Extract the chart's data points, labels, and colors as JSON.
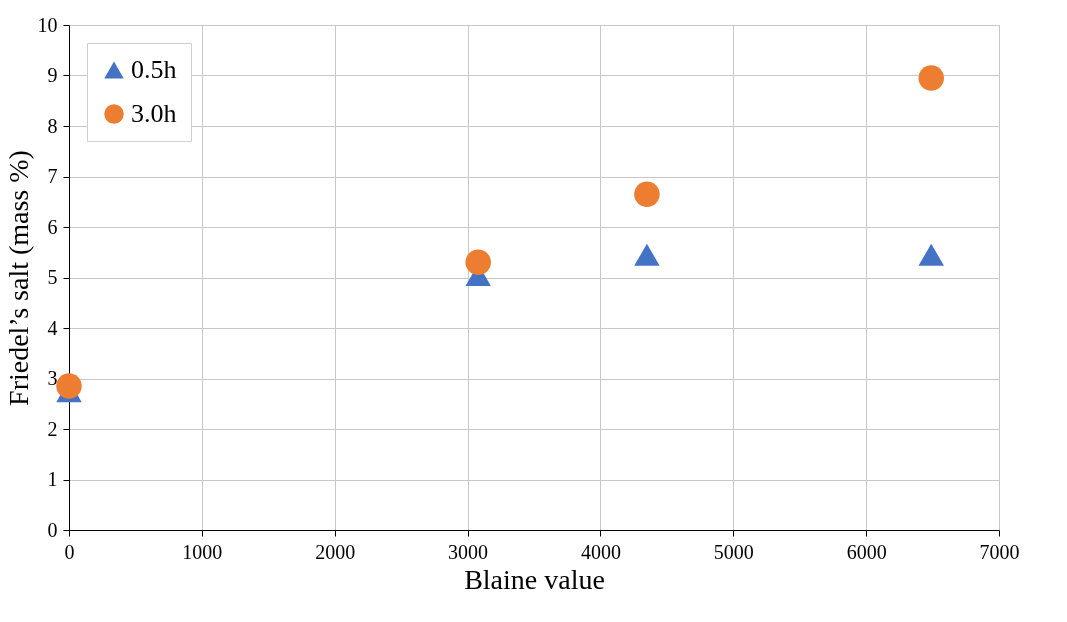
{
  "chart_data": {
    "type": "scatter",
    "xlabel": "Blaine value",
    "ylabel": "Friedel’s salt (mass %)",
    "xlim": [
      0,
      7000
    ],
    "xticks": [
      0,
      1000,
      2000,
      3000,
      4000,
      5000,
      6000,
      7000
    ],
    "ylim": [
      0,
      10
    ],
    "yticks": [
      0,
      1,
      2,
      3,
      4,
      5,
      6,
      7,
      8,
      9,
      10
    ],
    "grid": true,
    "legend": "top left",
    "series": [
      {
        "name": "0.5h",
        "color": "#4472c4",
        "marker": "triangle",
        "x": [
          0,
          3080,
          4350,
          6490
        ],
        "values": [
          2.75,
          5.05,
          5.45,
          5.45
        ]
      },
      {
        "name": "3.0h",
        "color": "#ed7d31",
        "marker": "circle",
        "x": [
          0,
          3080,
          4350,
          6490
        ],
        "values": [
          2.85,
          5.3,
          6.65,
          8.95
        ]
      }
    ]
  }
}
